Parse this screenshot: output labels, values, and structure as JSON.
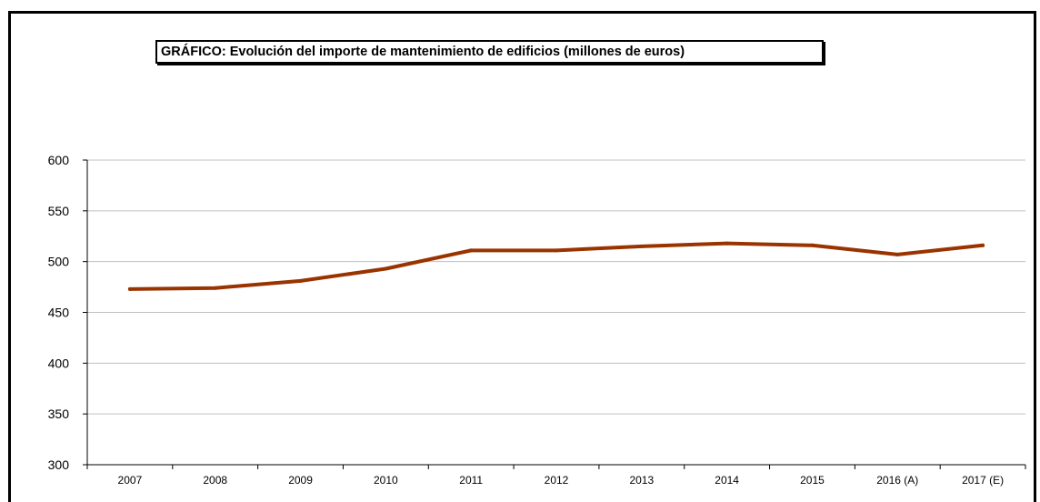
{
  "chart_data": {
    "type": "line",
    "title": "GRÁFICO: Evolución del importe de mantenimiento de edificios (millones de euros)",
    "xlabel": "",
    "ylabel": "",
    "categories": [
      "2007",
      "2008",
      "2009",
      "2010",
      "2011",
      "2012",
      "2013",
      "2014",
      "2015",
      "2016 (A)",
      "2017 (E)"
    ],
    "series": [
      {
        "values": [
          473,
          474,
          481,
          493,
          511,
          511,
          515,
          518,
          516,
          507,
          516
        ]
      }
    ],
    "ylim": [
      300,
      600
    ],
    "yticks": [
      300,
      350,
      400,
      450,
      500,
      550,
      600
    ],
    "grid": true,
    "legend": "none",
    "colors": {
      "line": "#993300",
      "grid": "#c0c0c0",
      "axis": "#000000"
    }
  }
}
